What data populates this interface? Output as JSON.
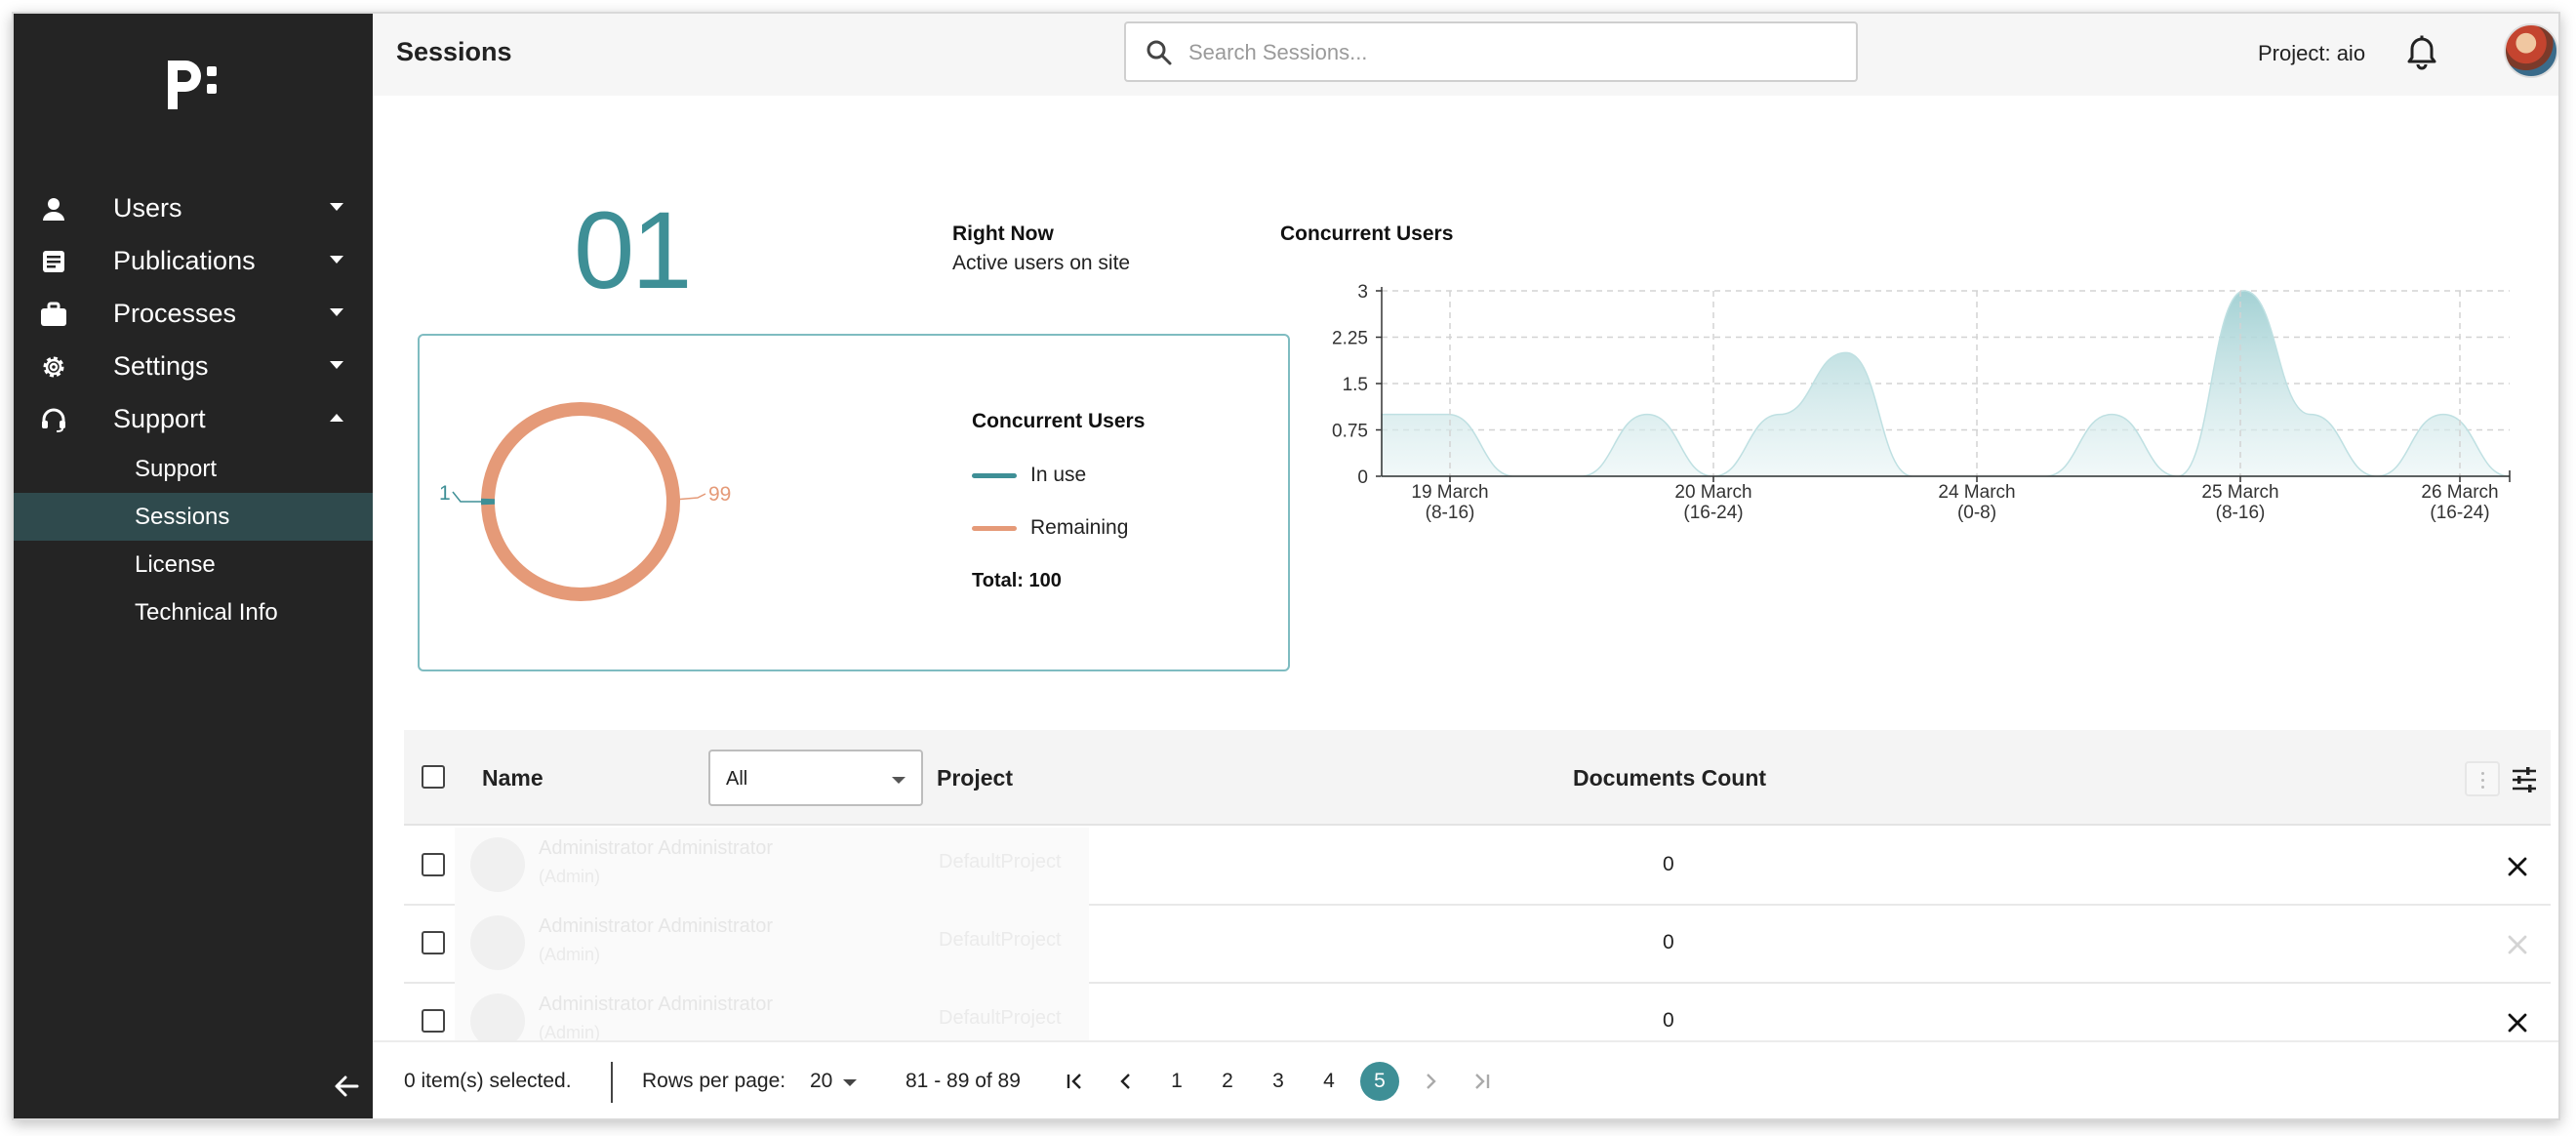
{
  "sidebar": {
    "items": [
      {
        "label": "Users",
        "icon": "person-icon"
      },
      {
        "label": "Publications",
        "icon": "document-icon"
      },
      {
        "label": "Processes",
        "icon": "briefcase-icon"
      },
      {
        "label": "Settings",
        "icon": "gear-icon"
      },
      {
        "label": "Support",
        "icon": "headset-icon"
      }
    ],
    "support_sub": [
      "Support",
      "Sessions",
      "License",
      "Technical Info"
    ],
    "active_sub": "Sessions"
  },
  "header": {
    "title": "Sessions",
    "search_placeholder": "Search Sessions...",
    "project": "Project: aio"
  },
  "stats": {
    "active_count": "01",
    "right_now": "Right Now",
    "active_users": "Active users on site"
  },
  "donut": {
    "title": "Concurrent Users",
    "in_use_label": "In use",
    "remaining_label": "Remaining",
    "total": "Total: 100",
    "in_use_value": "1",
    "remaining_value": "99",
    "in_use": 1,
    "remaining": 99,
    "colors": {
      "in_use": "#3e8f96",
      "remaining": "#e59a78"
    }
  },
  "chart_data": {
    "type": "area",
    "title": "Concurrent Users",
    "y_ticks": [
      "3",
      "2.25",
      "1.5",
      "0.75",
      "0"
    ],
    "x_ticks": [
      {
        "line1": "19 March",
        "line2": "(8-16)"
      },
      {
        "line1": "20 March",
        "line2": "(16-24)"
      },
      {
        "line1": "24 March",
        "line2": "(0-8)"
      },
      {
        "line1": "25 March",
        "line2": "(8-16)"
      },
      {
        "line1": "26 March",
        "line2": "(16-24)"
      }
    ],
    "ylim": [
      0,
      3
    ],
    "x": [
      0,
      0.5,
      1,
      1.5,
      2,
      2.5,
      3,
      3.5,
      4,
      4.5,
      5,
      5.5,
      6,
      6.5,
      7,
      7.5,
      8,
      8.5
    ],
    "values": [
      1,
      1,
      0,
      0,
      1,
      0,
      1,
      2,
      0,
      0,
      0,
      1,
      0,
      3,
      1,
      0,
      1,
      0
    ],
    "grid": true,
    "color": "#9fcfd2"
  },
  "table": {
    "headers": {
      "name": "Name",
      "project": "Project",
      "documents": "Documents Count"
    },
    "filter_value": "All",
    "rows": [
      {
        "ghost_name": "Administrator Administrator",
        "ghost_sub": "(Admin)",
        "ghost_project": "DefaultProject",
        "documents": "0"
      },
      {
        "ghost_name": "Administrator Administrator",
        "ghost_sub": "(Admin)",
        "ghost_project": "DefaultProject",
        "documents": "0"
      },
      {
        "ghost_name": "Administrator Administrator",
        "ghost_sub": "(Admin)",
        "ghost_project": "DefaultProject",
        "documents": "0"
      }
    ]
  },
  "footer": {
    "selected": "0 item(s) selected.",
    "rows_per_page_label": "Rows per page:",
    "rows_per_page": "20",
    "range": "81 - 89 of 89",
    "pages": [
      "1",
      "2",
      "3",
      "4",
      "5"
    ],
    "current_page": "5"
  }
}
